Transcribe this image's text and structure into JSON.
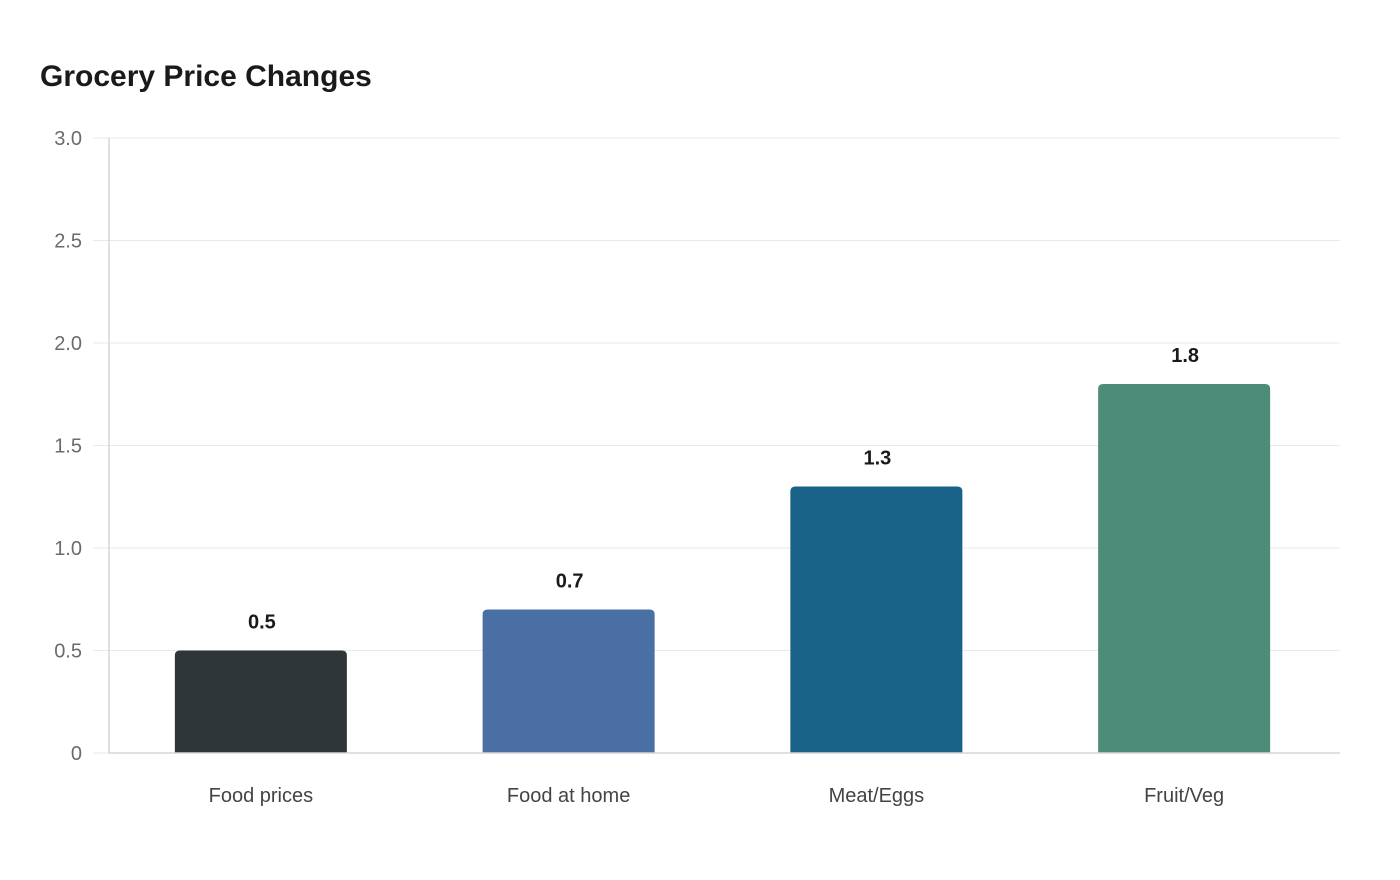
{
  "chart_data": {
    "type": "bar",
    "title": "Grocery Price Changes",
    "xlabel": "",
    "ylabel": "",
    "categories": [
      "Food prices",
      "Food at home",
      "Meat/Eggs",
      "Fruit/Veg"
    ],
    "values": [
      0.5,
      0.7,
      1.3,
      1.8
    ],
    "data_labels": [
      "0.5",
      "0.7",
      "1.3",
      "1.8"
    ],
    "colors": [
      "#2e3638",
      "#4a6fa5",
      "#186288",
      "#4e8c7a"
    ],
    "ylim": [
      0,
      3.0
    ],
    "yticks": [
      0,
      0.5,
      1.0,
      1.5,
      2.0,
      2.5,
      3.0
    ],
    "ytick_labels": [
      "0",
      "0.5",
      "1.0",
      "1.5",
      "2.0",
      "2.5",
      "3.0"
    ],
    "grid": true,
    "legend": "none"
  }
}
